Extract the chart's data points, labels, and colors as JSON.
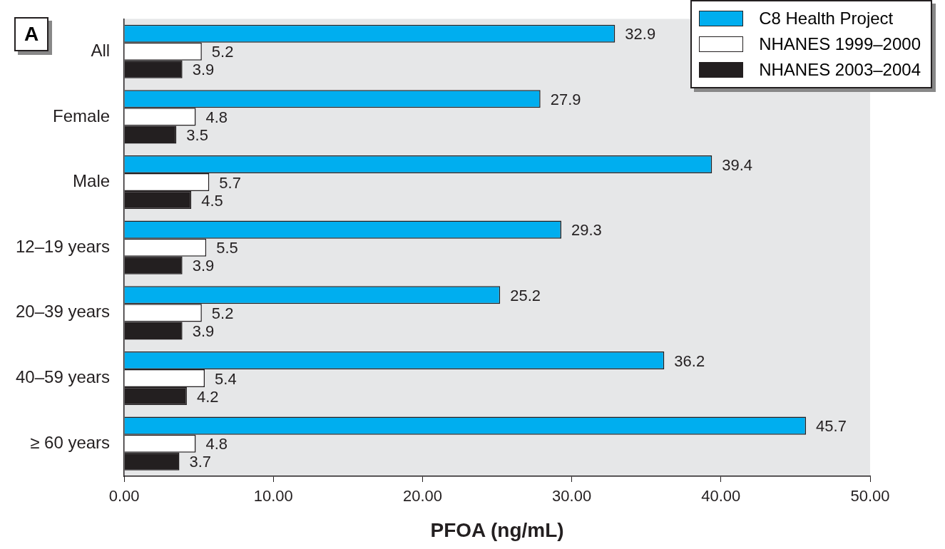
{
  "chart_data": {
    "type": "bar",
    "orientation": "horizontal",
    "xlabel": "PFOA (ng/mL)",
    "categories": [
      "All",
      "Female",
      "Male",
      "12–19 years",
      "20–39 years",
      "40–59 years",
      "≥ 60 years"
    ],
    "series": [
      {
        "name": "C8 Health Project",
        "color": "#00aeef",
        "values": [
          32.9,
          27.9,
          39.4,
          29.3,
          25.2,
          36.2,
          45.7
        ]
      },
      {
        "name": "NHANES 1999–2000",
        "color": "#ffffff",
        "values": [
          5.2,
          4.8,
          5.7,
          5.5,
          5.2,
          5.4,
          4.8
        ]
      },
      {
        "name": "NHANES 2003–2004",
        "color": "#231f20",
        "values": [
          3.9,
          3.5,
          4.5,
          3.9,
          3.9,
          4.2,
          3.7
        ]
      }
    ],
    "xlim": [
      0,
      50
    ],
    "xticks": [
      {
        "value": 0,
        "label": "0.00"
      },
      {
        "value": 10,
        "label": "10.00"
      },
      {
        "value": 20,
        "label": "20.00"
      },
      {
        "value": 30,
        "label": "30.00"
      },
      {
        "value": 40,
        "label": "40.00"
      },
      {
        "value": 50,
        "label": "50.00"
      }
    ],
    "data_labels": true,
    "grid": false,
    "legend": "top right",
    "annotations": [
      "A"
    ]
  }
}
